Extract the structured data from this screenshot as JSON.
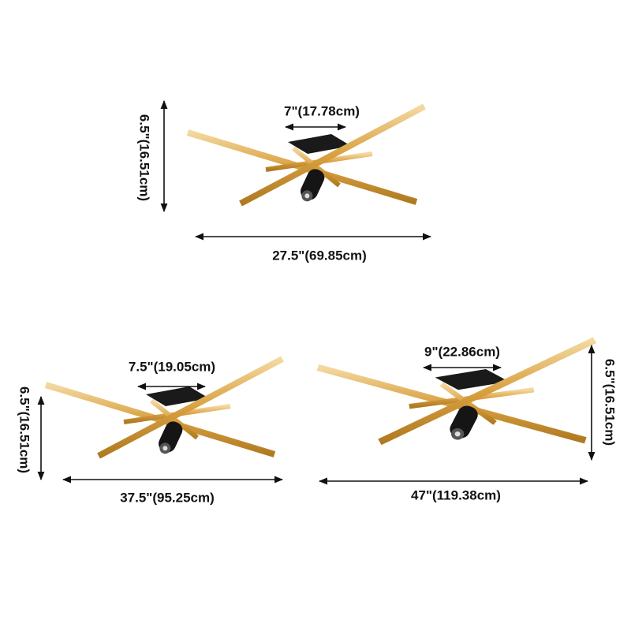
{
  "fixtures": [
    {
      "inner": "7\"(17.78cm)",
      "width": "27.5\"(69.85cm)",
      "height": "6.5\"(16.51cm)"
    },
    {
      "inner": "7.5\"(19.05cm)",
      "width": "37.5\"(95.25cm)",
      "height": "6.5\"(16.51cm)"
    },
    {
      "inner": "9\"(22.86cm)",
      "width": "47\"(119.38cm)",
      "height": "6.5\"(16.51cm)"
    }
  ]
}
